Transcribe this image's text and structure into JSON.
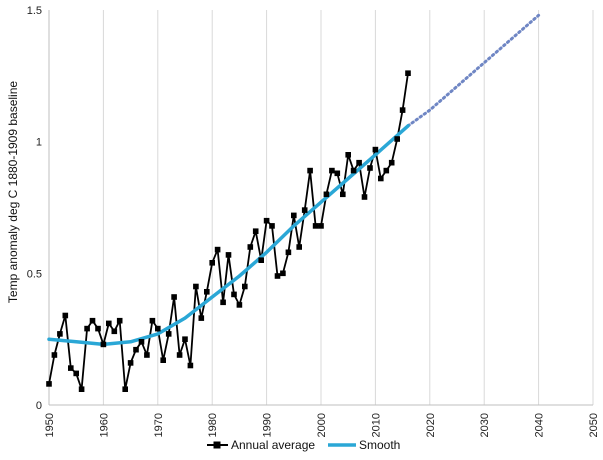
{
  "chart_data": {
    "type": "line",
    "title": "",
    "xlabel": "",
    "ylabel": "Temp anomaly deg C 1880-1909 baseline",
    "xlim": [
      1950,
      2050
    ],
    "ylim": [
      0,
      1.5
    ],
    "x_ticks": [
      1950,
      1960,
      1970,
      1980,
      1990,
      2000,
      2010,
      2020,
      2030,
      2040,
      2050
    ],
    "y_ticks": [
      0,
      0.5,
      1,
      1.5
    ],
    "y_tick_labels": [
      "0",
      "0.5",
      "1",
      "1.5"
    ],
    "grid": "vertical",
    "legend_position": "bottom",
    "series": [
      {
        "name": "Annual average",
        "color": "#000000",
        "marker": "square",
        "x": [
          1950,
          1951,
          1952,
          1953,
          1954,
          1955,
          1956,
          1957,
          1958,
          1959,
          1960,
          1961,
          1962,
          1963,
          1964,
          1965,
          1966,
          1967,
          1968,
          1969,
          1970,
          1971,
          1972,
          1973,
          1974,
          1975,
          1976,
          1977,
          1978,
          1979,
          1980,
          1981,
          1982,
          1983,
          1984,
          1985,
          1986,
          1987,
          1988,
          1989,
          1990,
          1991,
          1992,
          1993,
          1994,
          1995,
          1996,
          1997,
          1998,
          1999,
          2000,
          2001,
          2002,
          2003,
          2004,
          2005,
          2006,
          2007,
          2008,
          2009,
          2010,
          2011,
          2012,
          2013,
          2014,
          2015,
          2016
        ],
        "y": [
          0.08,
          0.19,
          0.27,
          0.34,
          0.14,
          0.12,
          0.06,
          0.29,
          0.32,
          0.29,
          0.23,
          0.31,
          0.28,
          0.32,
          0.06,
          0.16,
          0.21,
          0.24,
          0.19,
          0.32,
          0.29,
          0.17,
          0.27,
          0.41,
          0.19,
          0.25,
          0.15,
          0.45,
          0.33,
          0.43,
          0.54,
          0.59,
          0.39,
          0.57,
          0.42,
          0.38,
          0.45,
          0.6,
          0.66,
          0.55,
          0.7,
          0.68,
          0.49,
          0.5,
          0.58,
          0.72,
          0.6,
          0.74,
          0.89,
          0.68,
          0.68,
          0.8,
          0.89,
          0.88,
          0.8,
          0.95,
          0.89,
          0.92,
          0.79,
          0.9,
          0.97,
          0.86,
          0.89,
          0.92,
          1.01,
          1.12,
          1.26
        ]
      },
      {
        "name": "Smooth",
        "color": "#2aa7d6",
        "x": [
          1950,
          1955,
          1960,
          1965,
          1970,
          1975,
          1980,
          1985,
          1990,
          1995,
          2000,
          2005,
          2010,
          2016
        ],
        "y": [
          0.25,
          0.24,
          0.23,
          0.24,
          0.27,
          0.33,
          0.41,
          0.49,
          0.58,
          0.68,
          0.77,
          0.86,
          0.95,
          1.06
        ]
      },
      {
        "name": "",
        "color": "#6f86c4",
        "style": "dotted",
        "x": [
          2016,
          2020,
          2025,
          2030,
          2035,
          2040
        ],
        "y": [
          1.06,
          1.12,
          1.21,
          1.3,
          1.39,
          1.48
        ]
      }
    ]
  }
}
